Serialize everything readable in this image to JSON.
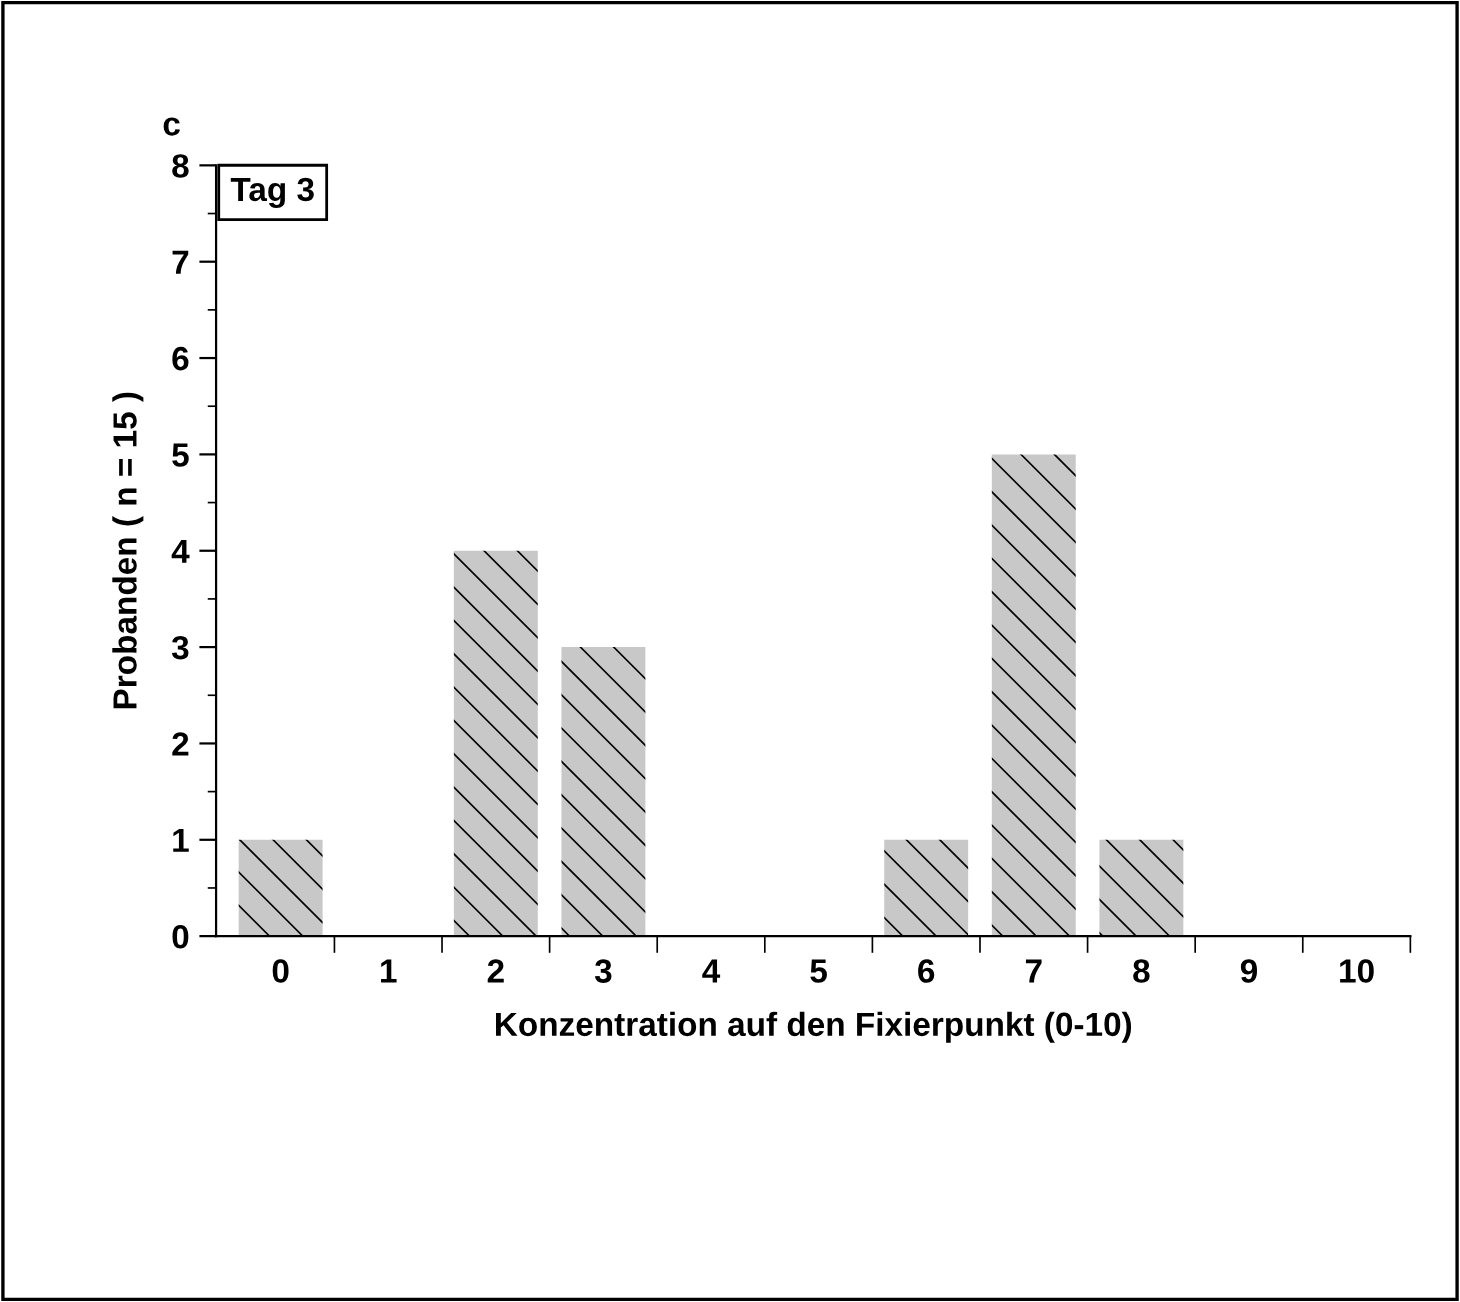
{
  "chart_data": {
    "type": "bar",
    "title": "Tag 3",
    "xlabel": "Konzentration auf den Fixierpunkt (0-10)",
    "ylabel": "Probanden ( n = 15 )",
    "annotations": [
      "c"
    ],
    "categories": [
      "0",
      "1",
      "2",
      "3",
      "4",
      "5",
      "6",
      "7",
      "8",
      "9",
      "10"
    ],
    "values": [
      1,
      0,
      4,
      3,
      0,
      0,
      1,
      5,
      1,
      0,
      0
    ],
    "color": "#c8c8c8",
    "ylim": [
      0,
      8
    ],
    "yticks": [
      0,
      1,
      2,
      3,
      4,
      5,
      6,
      7,
      8
    ],
    "grid": false,
    "legend": false
  }
}
